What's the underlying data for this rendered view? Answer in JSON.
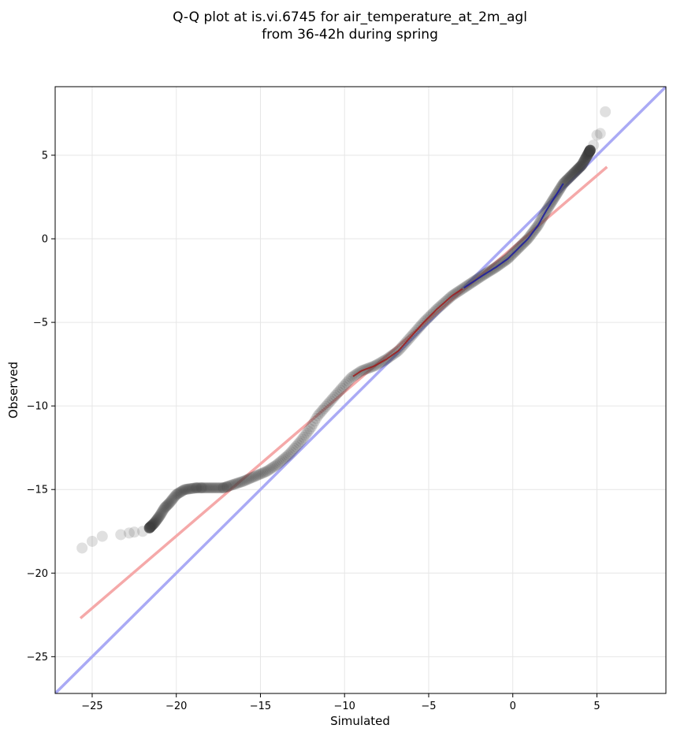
{
  "chart_data": {
    "type": "scatter",
    "title": "Q-Q plot at is.vi.6745 for air_temperature_at_2m_agl",
    "subtitle": "from 36-42h during spring",
    "xlabel": "Simulated",
    "ylabel": "Observed",
    "xlim": [
      -27.2,
      9.1
    ],
    "ylim": [
      -27.2,
      9.1
    ],
    "xticks": [
      -25,
      -20,
      -15,
      -10,
      -5,
      0,
      5
    ],
    "yticks": [
      -25,
      -20,
      -15,
      -10,
      -5,
      0,
      5
    ],
    "xtick_labels": [
      "−25",
      "−20",
      "−15",
      "−10",
      "−5",
      "0",
      "5"
    ],
    "ytick_labels": [
      "−25",
      "−20",
      "−15",
      "−10",
      "−5",
      "0",
      "5"
    ],
    "grid": true,
    "colors": {
      "points": "#3c3c3c",
      "one_to_one_line": "#aaaaf5",
      "fit_line": "#f5a9a9",
      "inner_one_to_one": "#1a1aa0",
      "inner_fit": "#a01a1a"
    },
    "lines": [
      {
        "kind": "one-to-one",
        "x": [
          -27.2,
          9.1
        ],
        "y": [
          -27.2,
          9.1
        ]
      },
      {
        "kind": "linear-fit",
        "x": [
          -25.7,
          5.6
        ],
        "y": [
          -22.7,
          4.3
        ]
      }
    ],
    "quantile_path": {
      "x": [
        -25.6,
        -25.0,
        -24.4,
        -23.3,
        -22.8,
        -22.0,
        -21.6,
        -21.3,
        -21.0,
        -20.7,
        -20.4,
        -20.0,
        -19.5,
        -18.8,
        -17.2,
        -16.6,
        -16.0,
        -15.3,
        -14.6,
        -14.0,
        -13.3,
        -12.6,
        -12.0,
        -11.6,
        -11.0,
        -10.3,
        -9.6,
        -9.0,
        -8.2,
        -7.5,
        -6.8,
        -6.0,
        -5.3,
        -4.5,
        -3.6,
        -2.7,
        -1.8,
        -1.0,
        -0.3,
        0.3,
        0.9,
        1.5,
        2.0,
        2.5,
        3.0,
        3.6,
        4.1,
        4.6,
        5.1,
        5.5
      ],
      "y": [
        -18.5,
        -18.1,
        -17.8,
        -17.7,
        -17.6,
        -17.5,
        -17.3,
        -17.0,
        -16.6,
        -16.1,
        -15.8,
        -15.3,
        -15.0,
        -14.9,
        -14.9,
        -14.7,
        -14.5,
        -14.2,
        -13.9,
        -13.5,
        -12.9,
        -12.1,
        -11.3,
        -10.6,
        -9.9,
        -9.1,
        -8.3,
        -7.9,
        -7.6,
        -7.2,
        -6.7,
        -5.8,
        -5.0,
        -4.2,
        -3.4,
        -2.8,
        -2.2,
        -1.7,
        -1.2,
        -0.6,
        0.0,
        0.8,
        1.7,
        2.5,
        3.3,
        3.9,
        4.4,
        5.3,
        6.2,
        7.6
      ]
    },
    "sparse_points": {
      "x": [
        -25.6,
        -25.0,
        -24.4,
        -23.3,
        -22.8,
        -22.5,
        -22.0,
        -21.6,
        -18.8,
        -18.5,
        -17.2,
        -17.0,
        4.6,
        4.8,
        5.0,
        5.2,
        5.5
      ],
      "y": [
        -18.5,
        -18.1,
        -17.8,
        -17.7,
        -17.6,
        -17.55,
        -17.5,
        -17.3,
        -14.9,
        -14.9,
        -14.9,
        -14.85,
        5.3,
        5.6,
        6.2,
        6.3,
        7.6
      ]
    },
    "dense_range": [
      -21.6,
      4.6
    ]
  }
}
